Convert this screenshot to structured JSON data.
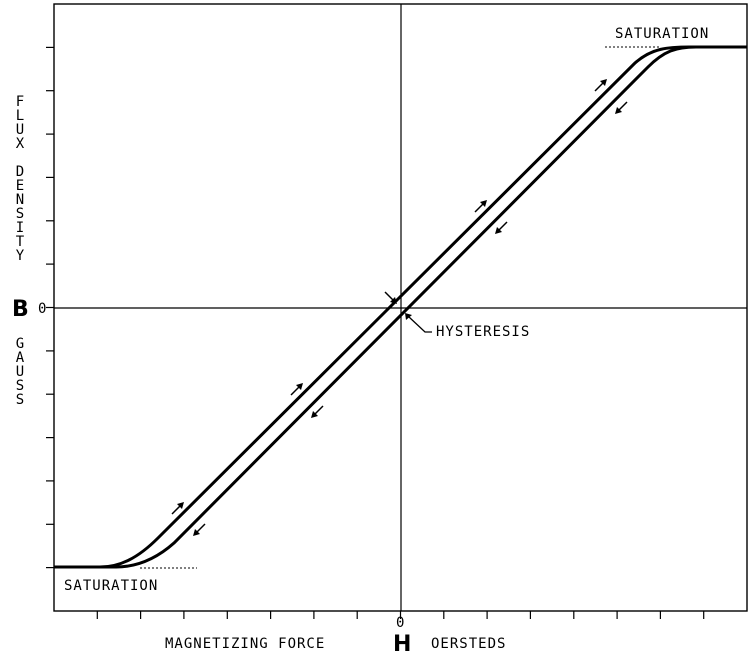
{
  "labels": {
    "saturation_top": "SATURATION",
    "saturation_bottom": "SATURATION",
    "hysteresis": "HYSTERESIS",
    "x_prefix": "MAGNETIZING FORCE",
    "x_symbol": "H",
    "x_suffix": "OERSTEDS",
    "y_symbol": "B",
    "y_zero": "0",
    "x_zero": "0",
    "y_upper": "FLUX DENSITY",
    "y_lower": "GAUSS"
  },
  "curve": {
    "branches": [
      "increasing",
      "decreasing"
    ],
    "regions": [
      "negative saturation",
      "linear",
      "positive saturation"
    ]
  },
  "axes": {
    "x_ticks": 16,
    "y_ticks": 12,
    "origin": "center"
  }
}
